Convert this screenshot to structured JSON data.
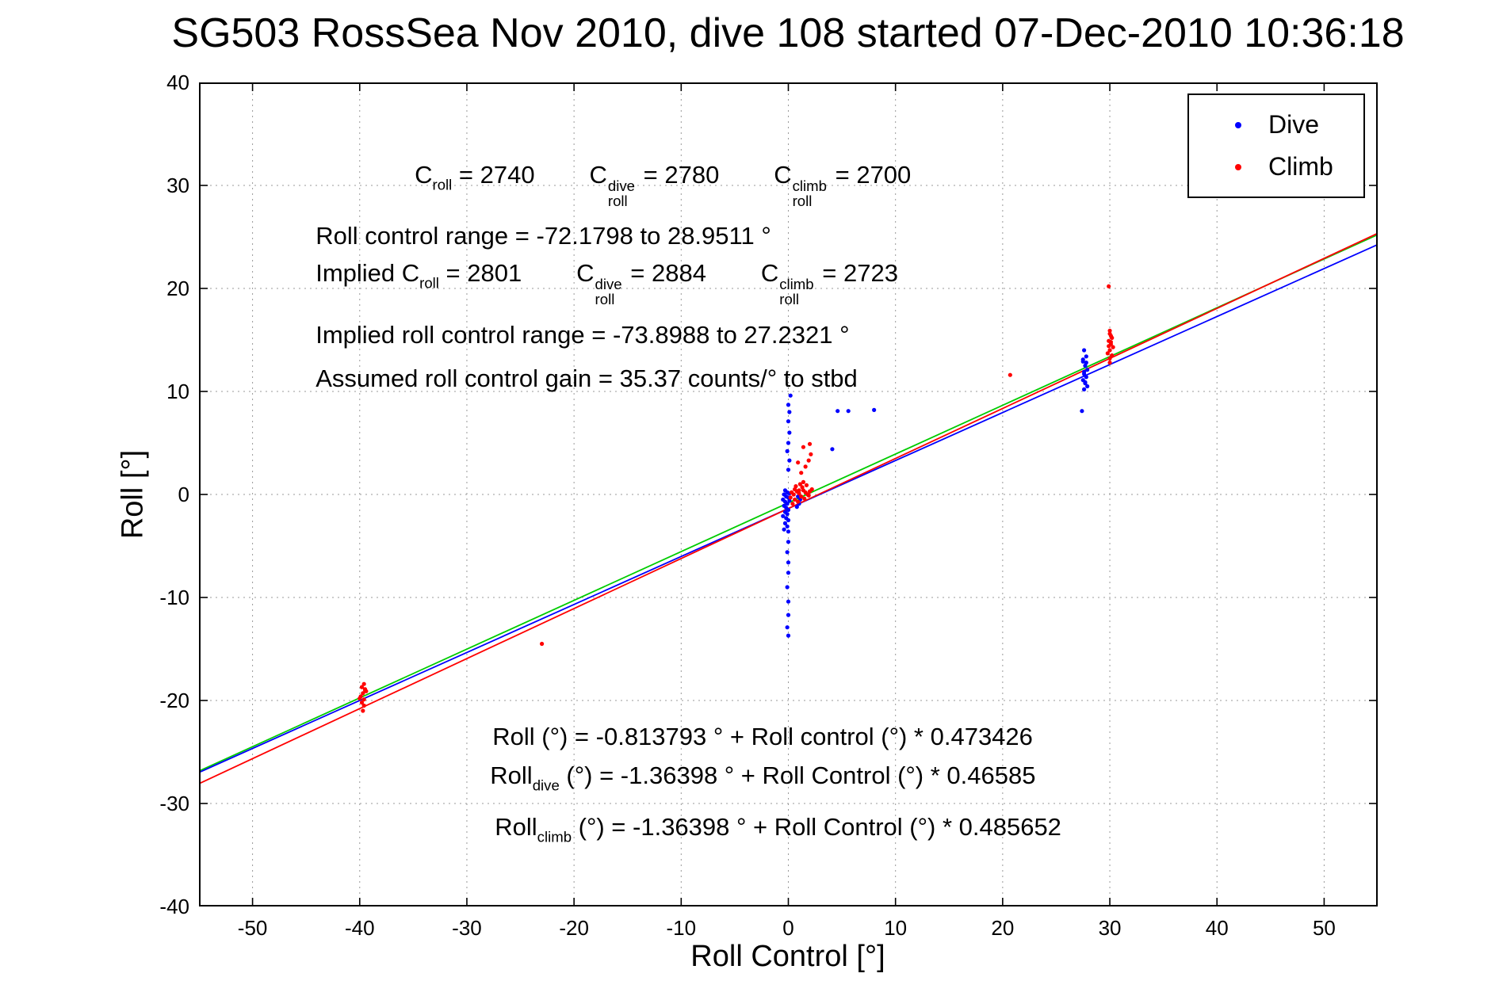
{
  "title": "SG503 RossSea Nov 2010, dive 108 started 07-Dec-2010 10:36:18",
  "chart_data": {
    "type": "scatter",
    "title": "SG503 RossSea Nov 2010, dive 108 started 07-Dec-2010 10:36:18",
    "xlabel": "Roll Control [°]",
    "ylabel": "Roll [°]",
    "xlim": [
      -55,
      55
    ],
    "ylim": [
      -40,
      40
    ],
    "x_ticks": [
      -50,
      -40,
      -30,
      -20,
      -10,
      0,
      10,
      20,
      30,
      40,
      50
    ],
    "y_ticks": [
      -40,
      -30,
      -20,
      -10,
      0,
      10,
      20,
      30,
      40
    ],
    "grid": true,
    "legend": {
      "position": "top-right",
      "entries": [
        {
          "label": "Dive",
          "color": "#0000ff"
        },
        {
          "label": "Climb",
          "color": "#ff0000"
        }
      ]
    },
    "series": [
      {
        "name": "Dive",
        "color": "#0000ff",
        "marker": "dot",
        "points": [
          [
            -0.3,
            0.4
          ],
          [
            -0.1,
            0.2
          ],
          [
            0.1,
            0.1
          ],
          [
            -0.4,
            0.0
          ],
          [
            -0.2,
            -0.2
          ],
          [
            0.0,
            -0.3
          ],
          [
            -0.5,
            -0.5
          ],
          [
            -0.3,
            -0.7
          ],
          [
            -0.1,
            -0.9
          ],
          [
            0.1,
            -0.6
          ],
          [
            -0.4,
            -1.1
          ],
          [
            -0.2,
            -1.3
          ],
          [
            0.0,
            -1.5
          ],
          [
            -0.3,
            -1.7
          ],
          [
            -0.1,
            -1.9
          ],
          [
            -0.5,
            -2.1
          ],
          [
            -0.2,
            -2.3
          ],
          [
            0.0,
            -2.5
          ],
          [
            -0.3,
            -2.8
          ],
          [
            -0.1,
            -3.1
          ],
          [
            -0.4,
            -3.4
          ],
          [
            0.0,
            -3.6
          ],
          [
            0.9,
            -0.2
          ],
          [
            1.1,
            -0.5
          ],
          [
            1.0,
            -0.9
          ],
          [
            0.8,
            -1.2
          ],
          [
            0.0,
            2.4
          ],
          [
            0.1,
            3.3
          ],
          [
            -0.1,
            4.2
          ],
          [
            0.0,
            5.0
          ],
          [
            0.1,
            6.0
          ],
          [
            0.0,
            7.1
          ],
          [
            0.1,
            8.0
          ],
          [
            0.0,
            8.7
          ],
          [
            0.2,
            9.6
          ],
          [
            0.0,
            -4.6
          ],
          [
            -0.1,
            -5.6
          ],
          [
            0.0,
            -6.6
          ],
          [
            0.0,
            -7.6
          ],
          [
            -0.1,
            -9.0
          ],
          [
            0.0,
            -10.4
          ],
          [
            0.0,
            -11.7
          ],
          [
            -0.1,
            -12.9
          ],
          [
            0.0,
            -13.7
          ],
          [
            4.6,
            8.1
          ],
          [
            5.6,
            8.1
          ],
          [
            4.1,
            4.4
          ],
          [
            8.0,
            8.2
          ],
          [
            27.6,
            14.0
          ],
          [
            27.8,
            13.4
          ],
          [
            27.5,
            12.9
          ],
          [
            27.7,
            12.5
          ],
          [
            27.9,
            12.1
          ],
          [
            27.6,
            11.7
          ],
          [
            27.8,
            11.4
          ],
          [
            27.5,
            11.1
          ],
          [
            27.7,
            10.8
          ],
          [
            27.9,
            10.5
          ],
          [
            27.6,
            10.2
          ],
          [
            27.4,
            8.1
          ],
          [
            27.8,
            12.8
          ],
          [
            27.6,
            11.9
          ],
          [
            27.7,
            10.9
          ],
          [
            27.5,
            13.1
          ]
        ]
      },
      {
        "name": "Climb",
        "color": "#ff0000",
        "marker": "dot",
        "points": [
          [
            -39.6,
            -18.4
          ],
          [
            -39.8,
            -18.7
          ],
          [
            -39.5,
            -19.0
          ],
          [
            -39.7,
            -19.3
          ],
          [
            -39.9,
            -19.6
          ],
          [
            -39.6,
            -19.9
          ],
          [
            -39.4,
            -19.1
          ],
          [
            -39.8,
            -20.2
          ],
          [
            -39.6,
            -20.5
          ],
          [
            -40.0,
            -19.8
          ],
          [
            -39.5,
            -18.9
          ],
          [
            -39.7,
            -21.0
          ],
          [
            -23.0,
            -14.5
          ],
          [
            0.3,
            0.2
          ],
          [
            0.5,
            0.0
          ],
          [
            0.8,
            0.3
          ],
          [
            1.0,
            0.1
          ],
          [
            1.2,
            -0.2
          ],
          [
            0.6,
            -0.5
          ],
          [
            0.9,
            -0.7
          ],
          [
            1.4,
            0.4
          ],
          [
            1.6,
            0.2
          ],
          [
            1.8,
            0.0
          ],
          [
            1.3,
            0.7
          ],
          [
            1.1,
            1.0
          ],
          [
            0.7,
            0.8
          ],
          [
            1.5,
            -0.4
          ],
          [
            2.0,
            0.3
          ],
          [
            0.4,
            -0.9
          ],
          [
            1.7,
            0.9
          ],
          [
            2.2,
            0.5
          ],
          [
            0.2,
            -0.3
          ],
          [
            1.9,
            -0.1
          ],
          [
            0.6,
            0.5
          ],
          [
            1.0,
            0.4
          ],
          [
            1.4,
            1.2
          ],
          [
            1.2,
            2.1
          ],
          [
            1.6,
            2.7
          ],
          [
            1.9,
            3.3
          ],
          [
            2.1,
            3.9
          ],
          [
            1.4,
            4.6
          ],
          [
            0.9,
            3.1
          ],
          [
            2.0,
            4.9
          ],
          [
            20.7,
            11.6
          ],
          [
            30.0,
            15.6
          ],
          [
            30.2,
            15.2
          ],
          [
            29.9,
            14.9
          ],
          [
            30.1,
            14.6
          ],
          [
            30.3,
            14.3
          ],
          [
            30.0,
            14.0
          ],
          [
            29.8,
            13.7
          ],
          [
            30.2,
            13.5
          ],
          [
            30.0,
            15.9
          ],
          [
            29.9,
            20.2
          ],
          [
            30.1,
            14.8
          ],
          [
            30.0,
            12.8
          ],
          [
            30.1,
            15.4
          ],
          [
            29.9,
            14.4
          ],
          [
            30.0,
            13.2
          ]
        ]
      }
    ],
    "fit_lines": [
      {
        "name": "all",
        "color": "#00cc00",
        "intercept": -0.813793,
        "slope": 0.473426,
        "x_range": [
          -55,
          55
        ]
      },
      {
        "name": "dive",
        "color": "#0000ff",
        "intercept": -1.36398,
        "slope": 0.46585,
        "x_range": [
          -55,
          55
        ]
      },
      {
        "name": "climb",
        "color": "#ff0000",
        "intercept": -1.36398,
        "slope": 0.485652,
        "x_range": [
          -55,
          55
        ]
      }
    ],
    "annotations": [
      {
        "id": "annotation-c-roll",
        "x": 0.183,
        "y": 0.094,
        "segments": [
          {
            "t": "C"
          },
          {
            "sub": "roll"
          },
          {
            "t": " = 2740        "
          },
          {
            "t": "C"
          },
          {
            "sup": "dive",
            "sub": "roll"
          },
          {
            "t": " = 2780        "
          },
          {
            "t": "C"
          },
          {
            "sup": "climb",
            "sub": "roll"
          },
          {
            "t": " = 2700"
          }
        ]
      },
      {
        "id": "annotation-roll-control-range",
        "x": 0.099,
        "y": 0.168,
        "segments": [
          {
            "t": "Roll control range = -72.1798 to 28.9511 °"
          }
        ]
      },
      {
        "id": "annotation-implied-c-roll",
        "x": 0.099,
        "y": 0.213,
        "segments": [
          {
            "t": "Implied C"
          },
          {
            "sub": "roll"
          },
          {
            "t": " = 2801        "
          },
          {
            "t": "C"
          },
          {
            "sup": "dive",
            "sub": "roll"
          },
          {
            "t": " = 2884        "
          },
          {
            "t": "C"
          },
          {
            "sup": "climb",
            "sub": "roll"
          },
          {
            "t": " = 2723"
          }
        ]
      },
      {
        "id": "annotation-implied-range",
        "x": 0.099,
        "y": 0.288,
        "segments": [
          {
            "t": "Implied roll control range = -73.8988 to 27.2321 °"
          }
        ]
      },
      {
        "id": "annotation-gain",
        "x": 0.099,
        "y": 0.341,
        "segments": [
          {
            "t": "Assumed roll control gain = 35.37 counts/° to stbd"
          }
        ]
      },
      {
        "id": "annotation-fit-all",
        "x": 0.249,
        "y": 0.776,
        "segments": [
          {
            "t": "Roll (°) = -0.813793 ° + Roll control (°) * 0.473426"
          }
        ]
      },
      {
        "id": "annotation-fit-dive",
        "x": 0.247,
        "y": 0.823,
        "segments": [
          {
            "t": "Roll"
          },
          {
            "sub": "dive"
          },
          {
            "t": " (°) = -1.36398 ° + Roll Control (°) * 0.46585"
          }
        ]
      },
      {
        "id": "annotation-fit-climb",
        "x": 0.251,
        "y": 0.886,
        "segments": [
          {
            "t": "Roll"
          },
          {
            "sub": "climb"
          },
          {
            "t": " (°) = -1.36398 ° + Roll Control (°) * 0.485652"
          }
        ]
      }
    ]
  }
}
